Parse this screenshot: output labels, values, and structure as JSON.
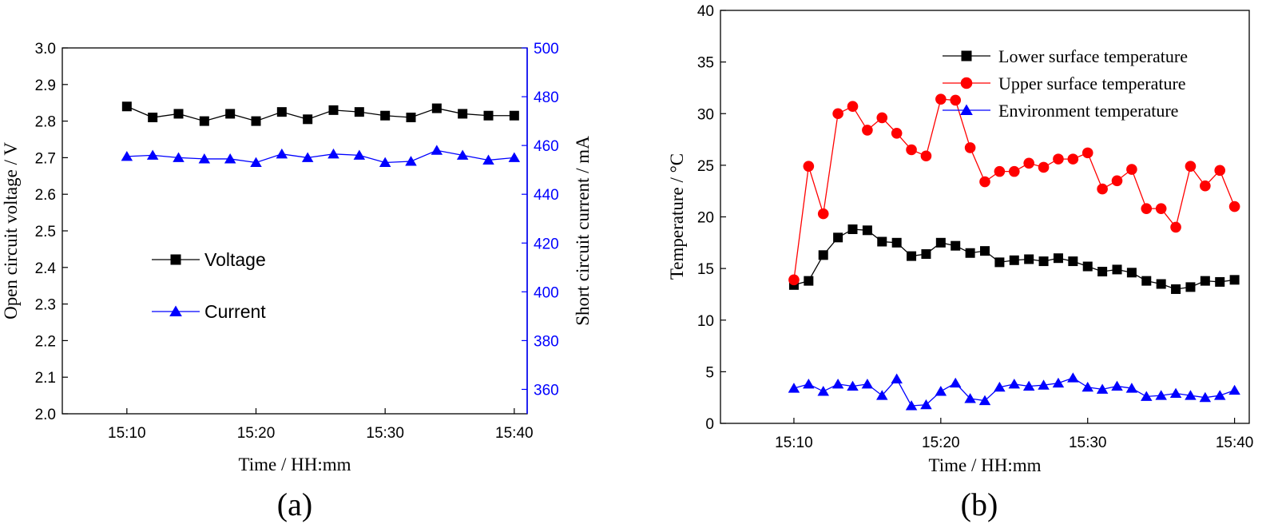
{
  "chart_data": [
    {
      "type": "line",
      "panel_label": "(a)",
      "xlabel": "Time / HH:mm",
      "ylabel": "Open circuit voltage / V",
      "y2label": "Short circuit current / mA",
      "xlim": [
        0,
        36
      ],
      "ylim": [
        2.0,
        3.0
      ],
      "y2lim": [
        350,
        500
      ],
      "x_ticks": [
        {
          "x": 5,
          "label": "15:10"
        },
        {
          "x": 15,
          "label": "15:20"
        },
        {
          "x": 25,
          "label": "15:30"
        },
        {
          "x": 35,
          "label": "15:40"
        }
      ],
      "y_ticks": [
        "2.0",
        "2.1",
        "2.2",
        "2.3",
        "2.4",
        "2.5",
        "2.6",
        "2.7",
        "2.8",
        "2.9",
        "3.0"
      ],
      "y2_ticks": [
        "360",
        "380",
        "400",
        "420",
        "440",
        "460",
        "480",
        "500"
      ],
      "grid": false,
      "legend_placement": "center-left",
      "series": [
        {
          "name": "Voltage",
          "axis": "left",
          "color": "#000000",
          "marker": "square",
          "x": [
            5,
            7,
            9,
            11,
            13,
            15,
            17,
            19,
            21,
            23,
            25,
            27,
            29,
            31,
            33,
            35
          ],
          "values": [
            2.84,
            2.81,
            2.82,
            2.8,
            2.82,
            2.8,
            2.825,
            2.805,
            2.83,
            2.825,
            2.815,
            2.81,
            2.835,
            2.82,
            2.815,
            2.815
          ]
        },
        {
          "name": "Current",
          "axis": "right",
          "color": "#0000ff",
          "marker": "triangle",
          "x": [
            5,
            7,
            9,
            11,
            13,
            15,
            17,
            19,
            21,
            23,
            25,
            27,
            29,
            31,
            33,
            35
          ],
          "values": [
            455.5,
            456,
            455,
            454.5,
            454.5,
            453,
            456.5,
            455,
            456.5,
            456,
            453,
            453.5,
            458,
            456,
            454,
            455
          ]
        }
      ]
    },
    {
      "type": "line",
      "panel_label": "(b)",
      "xlabel": "Time / HH:mm",
      "ylabel": "Temperature / °C",
      "xlim": [
        0,
        36
      ],
      "ylim": [
        0,
        40
      ],
      "x_ticks": [
        {
          "x": 5,
          "label": "15:10"
        },
        {
          "x": 15,
          "label": "15:20"
        },
        {
          "x": 25,
          "label": "15:30"
        },
        {
          "x": 35,
          "label": "15:40"
        }
      ],
      "y_ticks": [
        "0",
        "5",
        "10",
        "15",
        "20",
        "25",
        "30",
        "35",
        "40"
      ],
      "grid": false,
      "legend_placement": "top-right",
      "series": [
        {
          "name": "Lower surface temperature",
          "color": "#000000",
          "marker": "square",
          "x": [
            5,
            6,
            7,
            8,
            9,
            10,
            11,
            12,
            13,
            14,
            15,
            16,
            17,
            18,
            19,
            20,
            21,
            22,
            23,
            24,
            25,
            26,
            27,
            28,
            29,
            30,
            31,
            32,
            33,
            34,
            35
          ],
          "values": [
            13.4,
            13.8,
            16.3,
            18.0,
            18.8,
            18.7,
            17.6,
            17.5,
            16.2,
            16.4,
            17.5,
            17.2,
            16.5,
            16.7,
            15.6,
            15.8,
            15.9,
            15.7,
            16.0,
            15.7,
            15.2,
            14.7,
            14.9,
            14.6,
            13.8,
            13.5,
            13.0,
            13.2,
            13.8,
            13.7,
            13.9
          ]
        },
        {
          "name": "Upper surface temperature",
          "color": "#ff0000",
          "marker": "circle",
          "x": [
            5,
            6,
            7,
            8,
            9,
            10,
            11,
            12,
            13,
            14,
            15,
            16,
            17,
            18,
            19,
            20,
            21,
            22,
            23,
            24,
            25,
            26,
            27,
            28,
            29,
            30,
            31,
            32,
            33,
            34,
            35
          ],
          "values": [
            13.9,
            24.9,
            20.3,
            30.0,
            30.7,
            28.4,
            29.6,
            28.1,
            26.5,
            25.9,
            31.4,
            31.3,
            26.7,
            23.4,
            24.4,
            24.4,
            25.2,
            24.8,
            25.6,
            25.6,
            26.2,
            22.7,
            23.5,
            24.6,
            20.8,
            20.8,
            19.0,
            24.9,
            23.0,
            24.5,
            21.0
          ]
        },
        {
          "name": "Environment temperature",
          "color": "#0000ff",
          "marker": "triangle",
          "x": [
            5,
            6,
            7,
            8,
            9,
            10,
            11,
            12,
            13,
            14,
            15,
            16,
            17,
            18,
            19,
            20,
            21,
            22,
            23,
            24,
            25,
            26,
            27,
            28,
            29,
            30,
            31,
            32,
            33,
            34,
            35
          ],
          "values": [
            3.4,
            3.8,
            3.1,
            3.8,
            3.6,
            3.8,
            2.7,
            4.3,
            1.7,
            1.8,
            3.1,
            3.9,
            2.4,
            2.2,
            3.5,
            3.8,
            3.6,
            3.7,
            3.9,
            4.4,
            3.5,
            3.3,
            3.6,
            3.4,
            2.6,
            2.7,
            2.9,
            2.7,
            2.5,
            2.7,
            3.2
          ]
        }
      ]
    }
  ]
}
